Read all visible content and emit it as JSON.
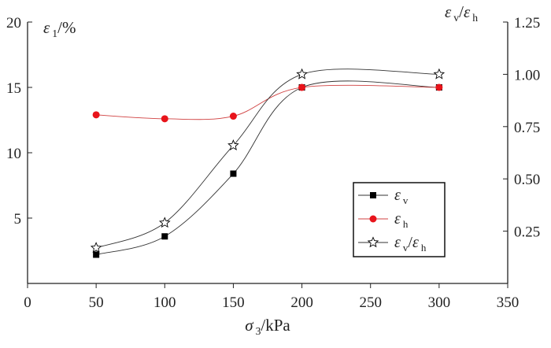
{
  "chart_data": {
    "type": "line",
    "xlabel": {
      "sym": "σ",
      "sub": "3",
      "unit": "/kPa"
    },
    "ylabel_left": {
      "sym": "ε",
      "sub": "1",
      "unit": "/%"
    },
    "ylabel_right": {
      "sym1": "ε",
      "sub1": "v",
      "sep": "/",
      "sym2": "ε",
      "sub2": "h"
    },
    "xlim": [
      0,
      350
    ],
    "ylim_left": [
      0,
      20
    ],
    "ylim_right": [
      0,
      1.25
    ],
    "x_ticks": [
      "0",
      "50",
      "100",
      "150",
      "200",
      "250",
      "300",
      "350"
    ],
    "y_left_ticks": [
      "5",
      "10",
      "15",
      "20"
    ],
    "y_right_ticks": [
      "0.25",
      "0.50",
      "0.75",
      "1.00",
      "1.25"
    ],
    "x": [
      50,
      100,
      150,
      200,
      300
    ],
    "series": [
      {
        "name": "εv",
        "sym": "ε",
        "sub": "v",
        "axis": "left",
        "marker": "square",
        "color": "#000000",
        "line_color": "#333333",
        "values": [
          2.2,
          3.6,
          8.4,
          15.0,
          15.0
        ]
      },
      {
        "name": "εh",
        "sym": "ε",
        "sub": "h",
        "axis": "left",
        "marker": "circle",
        "color": "#e8141b",
        "line_color": "#d04040",
        "values": [
          12.9,
          12.6,
          12.8,
          15.0,
          15.0
        ]
      },
      {
        "name": "εv/εh",
        "sym": "ε",
        "sub": "v",
        "sym2": "ε",
        "sub2": "h",
        "axis": "right",
        "marker": "star",
        "color": "#000000",
        "line_color": "#333333",
        "values": [
          0.17,
          0.29,
          0.66,
          1.0,
          1.0
        ]
      }
    ],
    "legend": "lower-right",
    "grid": false
  }
}
